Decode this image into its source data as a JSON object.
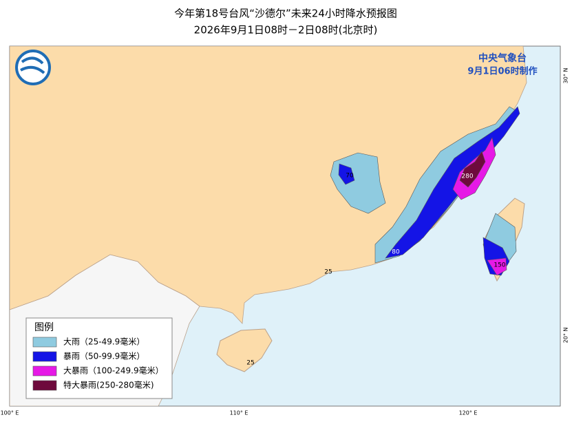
{
  "header": {
    "title": "今年第18号台风“沙德尔”未来24小时降水预报图",
    "subtitle": "2026年9月1日08时－2日08时(北京时)"
  },
  "agency": {
    "name": "中央气象台",
    "issued": "9月1日06时制作"
  },
  "legend": {
    "title": "图例",
    "items": [
      {
        "label": "大雨（25-49.9毫米）",
        "color": "#8fcbe0"
      },
      {
        "label": "暴雨（50-99.9毫米）",
        "color": "#1414e6"
      },
      {
        "label": "大暴雨（100-249.9毫米）",
        "color": "#e619e6"
      },
      {
        "label": "特大暴雨(250-280毫米)",
        "color": "#6e0a3c"
      }
    ]
  },
  "map_labels": [
    "70",
    "280",
    "80",
    "150",
    "25",
    "25"
  ],
  "grid_labels": {
    "lon": [
      "100° E",
      "110° E",
      "120° E"
    ],
    "lat": [
      "30° N",
      "20° N"
    ]
  }
}
